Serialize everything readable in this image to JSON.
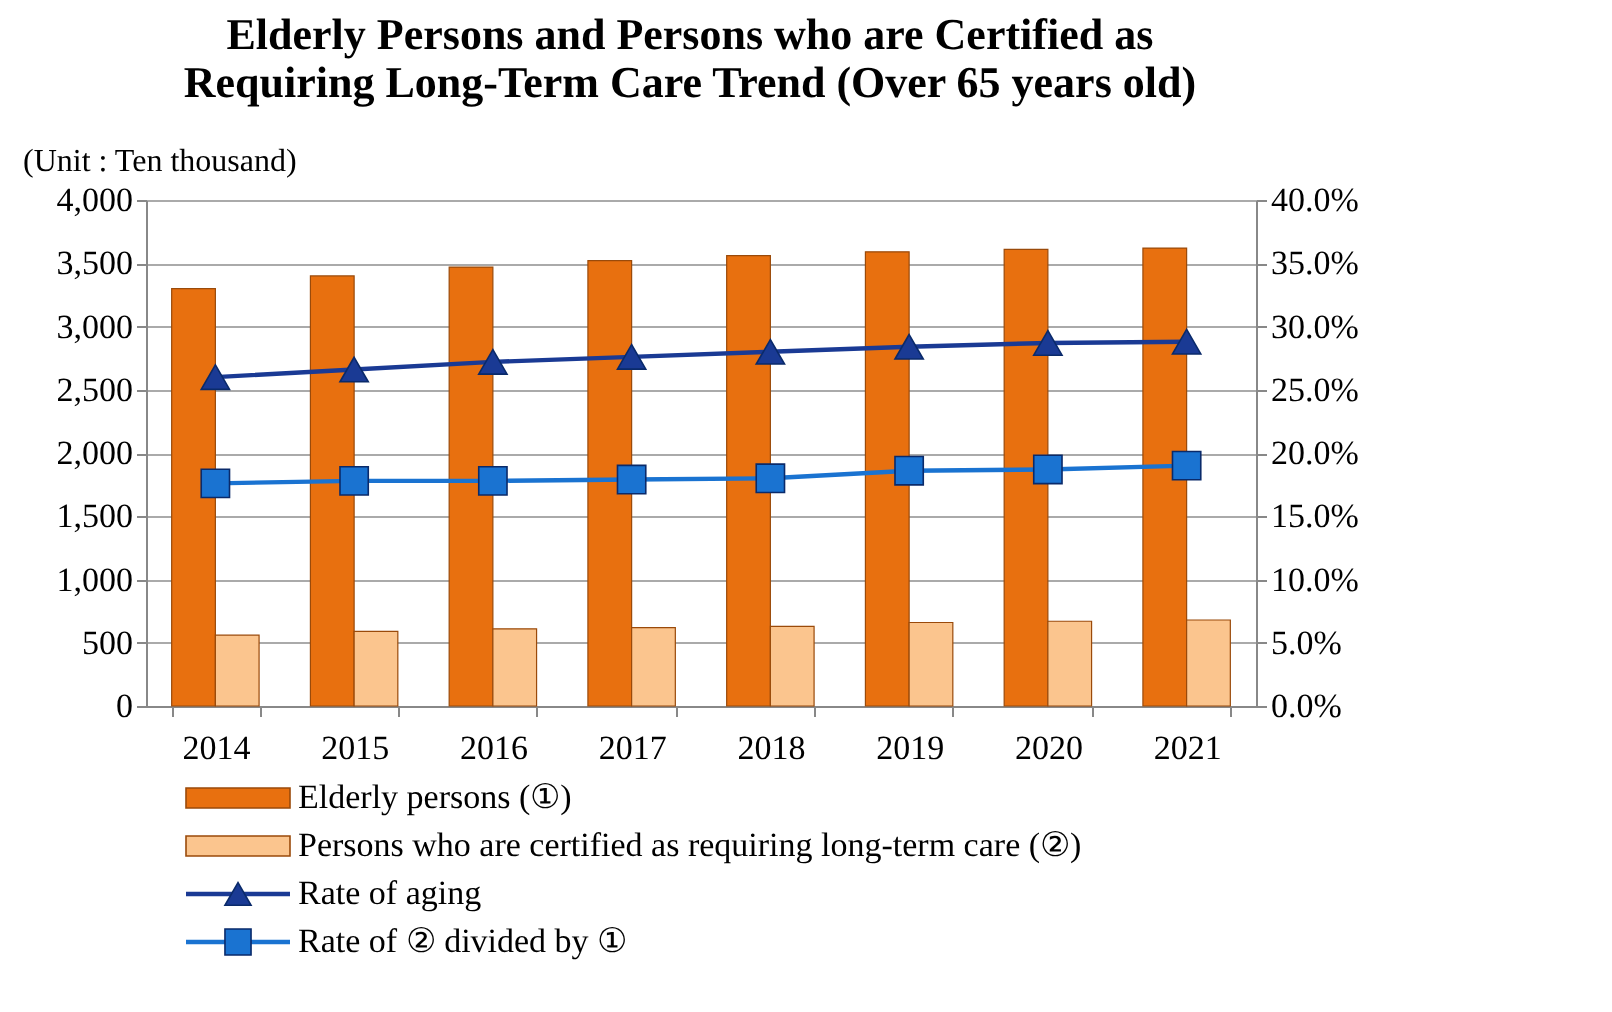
{
  "chart_data": {
    "type": "bar",
    "title": [
      "Elderly Persons and Persons who are Certified as",
      "Requiring Long-Term Care Trend (Over 65 years old)"
    ],
    "ylabel": "(Unit : Ten thousand)",
    "categories": [
      "2014",
      "2015",
      "2016",
      "2017",
      "2018",
      "2019",
      "2020",
      "2021"
    ],
    "series": [
      {
        "name": "Elderly persons (①)",
        "color": "#e8700f",
        "values": [
          3300,
          3400,
          3470,
          3520,
          3560,
          3590,
          3610,
          3620
        ]
      },
      {
        "name": "Persons who are certified as requiring long-term care (②)",
        "color": "#fbc58e",
        "values": [
          560,
          590,
          610,
          620,
          630,
          660,
          670,
          680
        ]
      },
      {
        "name": "Rate of aging",
        "type": "line",
        "axis": "y2",
        "marker": "triangle",
        "color": "#1a3a94",
        "values": [
          26.0,
          26.6,
          27.2,
          27.6,
          28.0,
          28.4,
          28.7,
          28.8
        ]
      },
      {
        "name": "Rate of ② divided by ①",
        "type": "line",
        "axis": "y2",
        "marker": "square",
        "color": "#1a73d1",
        "values": [
          17.6,
          17.8,
          17.8,
          17.9,
          18.0,
          18.6,
          18.7,
          19.0
        ]
      }
    ],
    "ylim": [
      0,
      4000
    ],
    "yticks": [
      0,
      500,
      {
        "value": 1000,
        "label": "1,000"
      },
      {
        "value": 1500,
        "label": "1,500"
      },
      {
        "value": 2000,
        "label": "2,000"
      },
      {
        "value": 2500,
        "label": "2,500"
      },
      {
        "value": 3000,
        "label": "3,000"
      },
      {
        "value": 3500,
        "label": "3,500"
      },
      {
        "value": 4000,
        "label": "4,000"
      }
    ],
    "y2lim": [
      0,
      40
    ],
    "y2ticks": [
      {
        "value": 0,
        "label": "0.0%"
      },
      {
        "value": 5,
        "label": "5.0%"
      },
      {
        "value": 10,
        "label": "10.0%"
      },
      {
        "value": 15,
        "label": "15.0%"
      },
      {
        "value": 20,
        "label": "20.0%"
      },
      {
        "value": 25,
        "label": "25.0%"
      },
      {
        "value": 30,
        "label": "30.0%"
      },
      {
        "value": 35,
        "label": "35.0%"
      },
      {
        "value": 40,
        "label": "40.0%"
      }
    ],
    "grid": "y",
    "legend": "bottom",
    "line_style": "solid"
  }
}
